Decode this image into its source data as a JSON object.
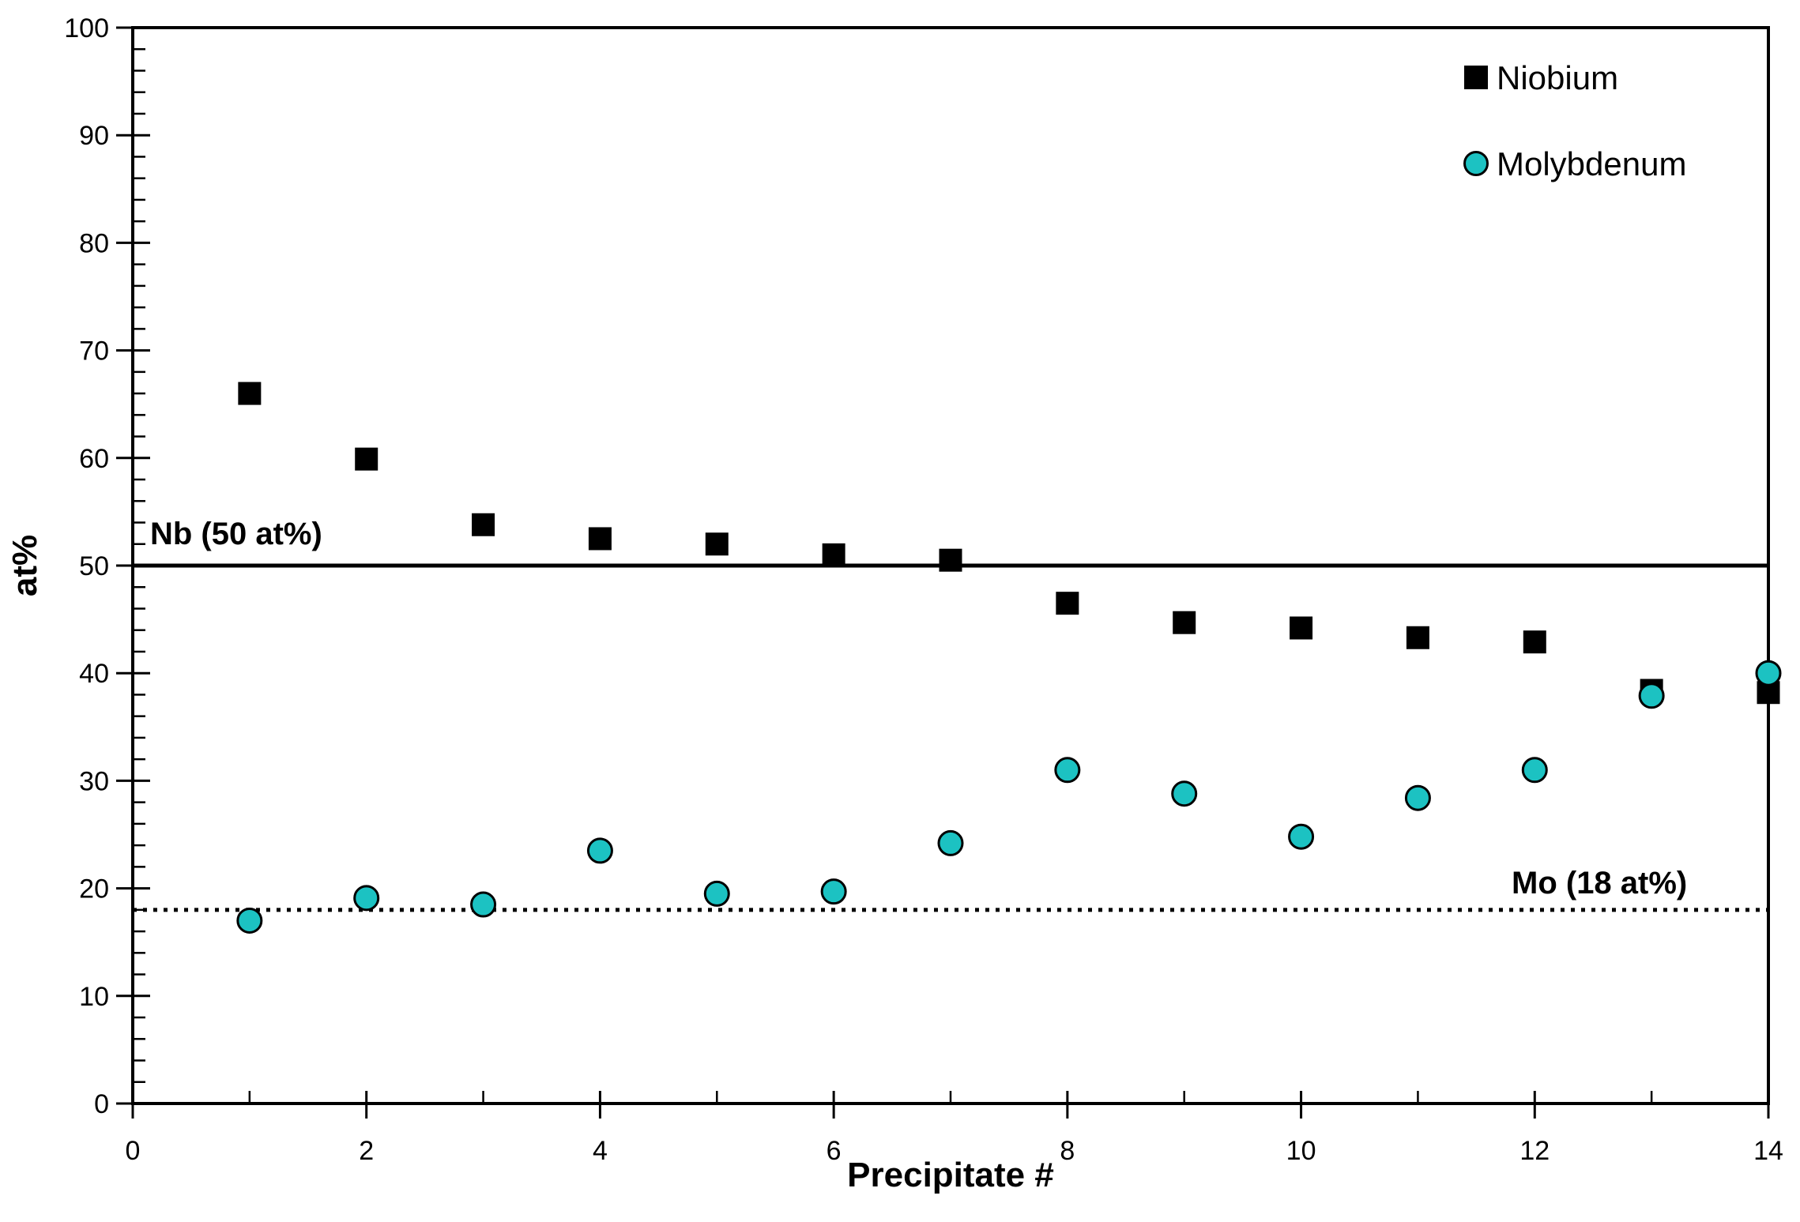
{
  "chart_data": {
    "type": "scatter",
    "title": "",
    "xlabel": "Precipitate #",
    "ylabel": "at%",
    "xlim": [
      0,
      14
    ],
    "ylim": [
      0,
      100
    ],
    "x_major_ticks": [
      0,
      2,
      4,
      6,
      8,
      10,
      12,
      14
    ],
    "x_minor_ticks": [
      1,
      3,
      5,
      7,
      9,
      11,
      13
    ],
    "y_major_ticks": [
      0,
      10,
      20,
      30,
      40,
      50,
      60,
      70,
      80,
      90,
      100
    ],
    "y_minor_step": 2,
    "grid": false,
    "legend_position": "top-right",
    "x": [
      1,
      2,
      3,
      4,
      5,
      6,
      7,
      8,
      9,
      10,
      11,
      12,
      13,
      14
    ],
    "series": [
      {
        "name": "Niobium",
        "marker": "square",
        "color": "#000000",
        "values": [
          66.0,
          59.9,
          53.8,
          52.5,
          52.0,
          51.0,
          50.5,
          46.5,
          44.7,
          44.2,
          43.3,
          42.9,
          38.4,
          38.2
        ]
      },
      {
        "name": "Molybdenum",
        "marker": "circle",
        "color": "#1cc2c2",
        "marker_stroke": "#000000",
        "values": [
          17.0,
          19.1,
          18.5,
          23.5,
          19.5,
          19.7,
          24.2,
          31.0,
          28.8,
          24.8,
          28.4,
          31.0,
          37.9,
          40.0
        ]
      }
    ],
    "reference_lines": [
      {
        "label": "Nb (50 at%)",
        "value": 50,
        "style": "solid",
        "color": "#000000"
      },
      {
        "label": "Mo (18 at%)",
        "value": 18,
        "style": "dotted",
        "color": "#000000"
      }
    ]
  },
  "colors": {
    "axis": "#000000",
    "background": "#ffffff",
    "niobium": "#000000",
    "molybdenum": "#1cc2c2"
  }
}
